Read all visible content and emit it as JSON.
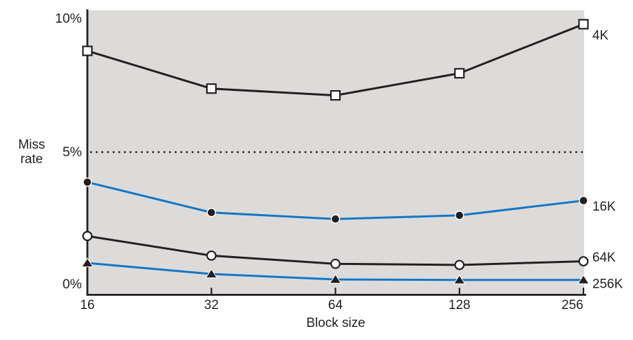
{
  "chart_data": {
    "type": "line",
    "title": "",
    "xlabel": "Block size",
    "ylabel": "Miss rate",
    "x_scale": "log2-categorical",
    "categories": [
      16,
      32,
      64,
      128,
      256
    ],
    "x_tick_labels": [
      "16",
      "32",
      "64",
      "128",
      "256"
    ],
    "y_tick_values": [
      0,
      5,
      10
    ],
    "y_tick_labels": [
      "0%",
      "5%",
      "10%"
    ],
    "ylim": [
      0,
      10.2
    ],
    "grid": false,
    "reference_line": {
      "value": 5,
      "style": "dotted"
    },
    "legend_position": "right-end-labels",
    "series": [
      {
        "name": "4K",
        "color": "#231f20",
        "marker": "open-square",
        "values": [
          8.57,
          7.24,
          7.0,
          7.78,
          9.51
        ]
      },
      {
        "name": "16K",
        "color": "#1277c8",
        "marker": "filled-circle",
        "values": [
          3.94,
          2.87,
          2.64,
          2.77,
          3.29
        ]
      },
      {
        "name": "64K",
        "color": "#231f20",
        "marker": "open-circle",
        "values": [
          2.04,
          1.35,
          1.06,
          1.02,
          1.15
        ]
      },
      {
        "name": "256K",
        "color": "#1277c8",
        "marker": "filled-triangle",
        "values": [
          1.09,
          0.7,
          0.51,
          0.49,
          0.49
        ]
      }
    ],
    "colors": {
      "plot_bg": "#dcdbd9",
      "page_bg": "#ffffff",
      "axis": "#231f20",
      "text": "#231f20",
      "blue_line": "#1277c8"
    }
  }
}
